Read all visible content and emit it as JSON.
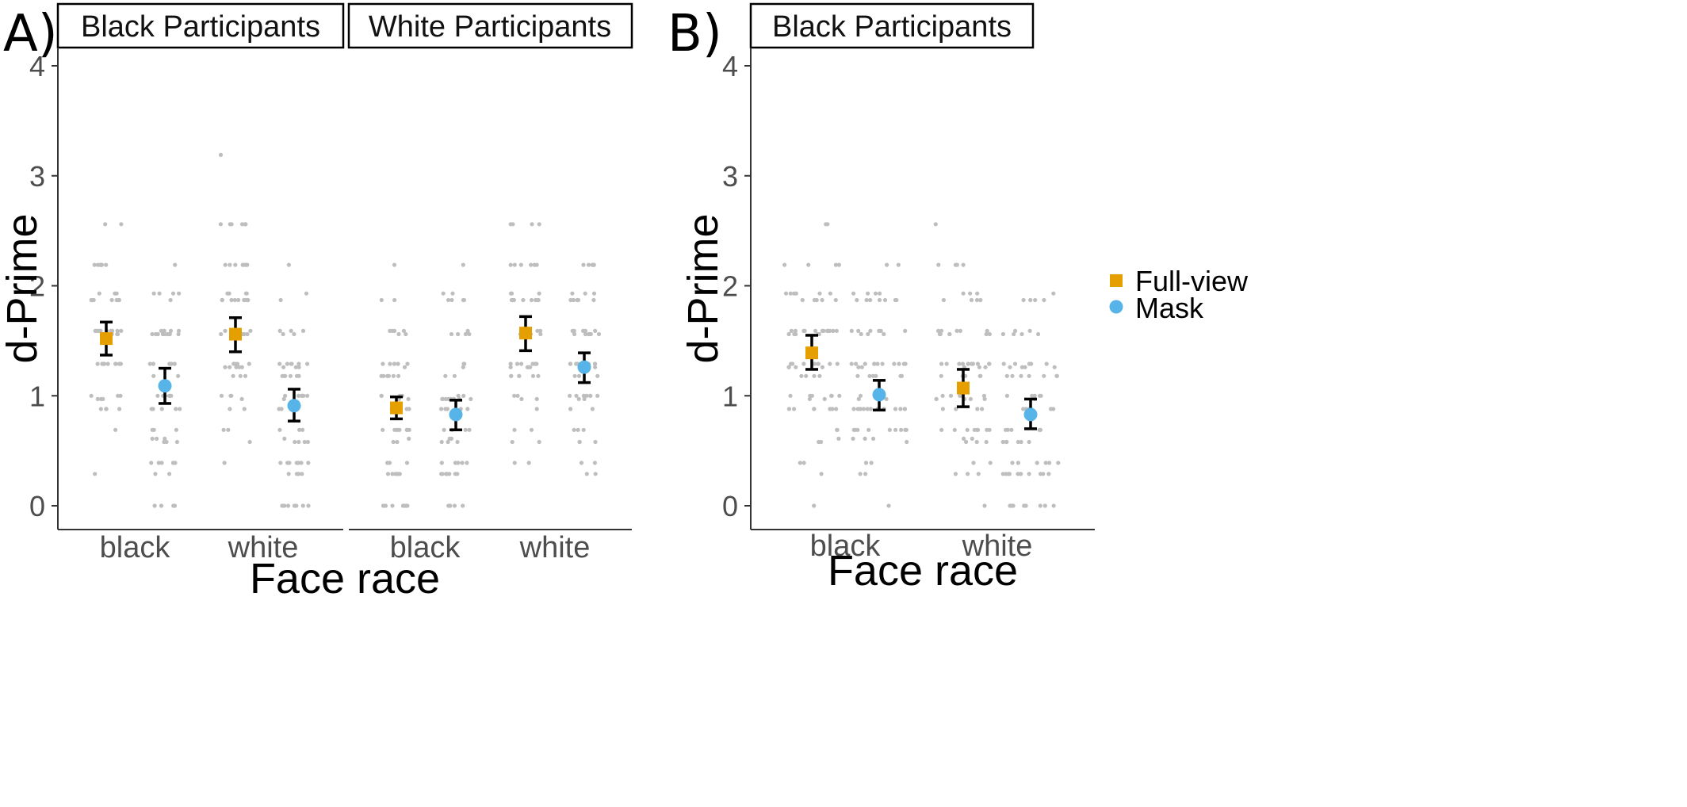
{
  "chart_data": [
    {
      "type": "scatter",
      "panel_label": "A)",
      "ylabel": "d-Prime",
      "xlabel": "Face race",
      "ylim": [
        -0.2,
        4.1
      ],
      "yticks": [
        "0",
        "1",
        "2",
        "3",
        "4"
      ],
      "categories": [
        "black",
        "white"
      ],
      "facets": [
        {
          "title": "Black Participants",
          "series": [
            {
              "name": "Full-view",
              "values": [
                1.52,
                1.56
              ],
              "error_low": [
                1.37,
                1.4
              ],
              "error_high": [
                1.67,
                1.71
              ]
            },
            {
              "name": "Mask",
              "values": [
                1.09,
                0.91
              ],
              "error_low": [
                0.93,
                0.77
              ],
              "error_high": [
                1.25,
                1.06
              ]
            }
          ]
        },
        {
          "title": "White Participants",
          "series": [
            {
              "name": "Full-view",
              "values": [
                0.89,
                1.57
              ],
              "error_low": [
                0.79,
                1.41
              ],
              "error_high": [
                0.99,
                1.72
              ]
            },
            {
              "name": "Mask",
              "values": [
                0.83,
                1.26
              ],
              "error_low": [
                0.69,
                1.12
              ],
              "error_high": [
                0.96,
                1.39
              ]
            }
          ]
        }
      ]
    },
    {
      "type": "scatter",
      "panel_label": "B)",
      "ylabel": "d-Prime",
      "xlabel": "Face race",
      "ylim": [
        -0.2,
        4.1
      ],
      "yticks": [
        "0",
        "1",
        "2",
        "3",
        "4"
      ],
      "categories": [
        "black",
        "white"
      ],
      "facets": [
        {
          "title": "Black Participants",
          "series": [
            {
              "name": "Full-view",
              "values": [
                1.39,
                1.07
              ],
              "error_low": [
                1.24,
                0.9
              ],
              "error_high": [
                1.55,
                1.24
              ]
            },
            {
              "name": "Mask",
              "values": [
                1.01,
                0.83
              ],
              "error_low": [
                0.87,
                0.7
              ],
              "error_high": [
                1.14,
                0.97
              ]
            }
          ]
        }
      ]
    }
  ],
  "legend": {
    "items": [
      {
        "label": "Full-view",
        "color": "#E69F00",
        "shape": "square"
      },
      {
        "label": "Mask",
        "color": "#56B4E9",
        "shape": "circle"
      }
    ]
  },
  "colors": {
    "raw_points": "#BEBEBE",
    "error_bar": "#000000",
    "axis": "#333333"
  }
}
